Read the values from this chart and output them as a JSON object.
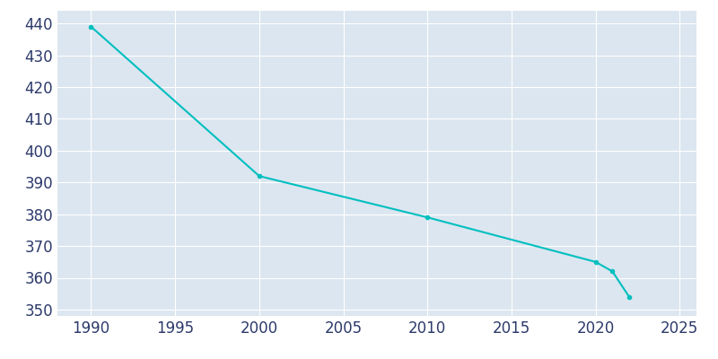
{
  "years": [
    1990,
    2000,
    2010,
    2020,
    2021,
    2022
  ],
  "population": [
    439,
    392,
    379,
    365,
    362,
    354
  ],
  "line_color": "#00BFBF",
  "marker": "o",
  "marker_size": 3,
  "background_color": "#dce6f0",
  "figure_background": "#ffffff",
  "grid_color": "#ffffff",
  "line_width": 1.5,
  "xlim": [
    1988,
    2026
  ],
  "ylim": [
    348,
    444
  ],
  "xticks": [
    1990,
    1995,
    2000,
    2005,
    2010,
    2015,
    2020,
    2025
  ],
  "yticks": [
    350,
    360,
    370,
    380,
    390,
    400,
    410,
    420,
    430,
    440
  ],
  "tick_label_color": "#2d3a6b",
  "tick_fontsize": 12
}
